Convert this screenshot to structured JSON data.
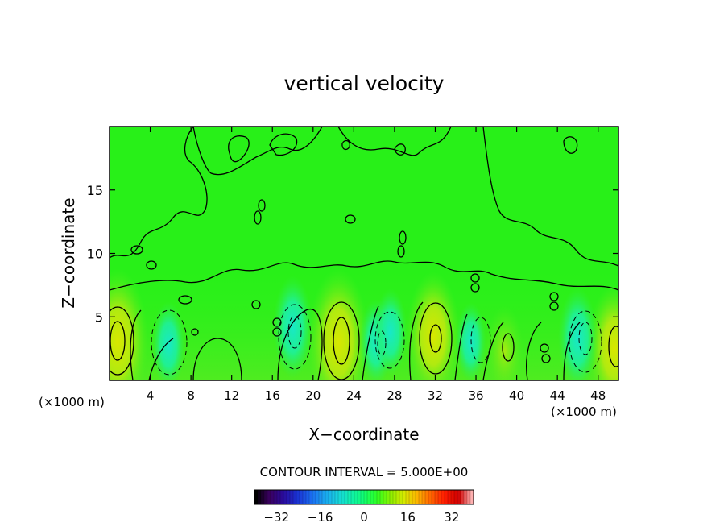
{
  "chart_data": {
    "type": "heatmap",
    "title": "vertical velocity",
    "xlabel": "X−coordinate",
    "ylabel": "Z−coordinate",
    "x_unit_left": "(×1000 m)",
    "x_unit_right": "(×1000 m)",
    "xlim": [
      0,
      50
    ],
    "ylim": [
      0,
      20
    ],
    "x_ticks": [
      4,
      8,
      12,
      16,
      20,
      24,
      28,
      32,
      36,
      40,
      44,
      48
    ],
    "y_ticks": [
      5,
      10,
      15
    ],
    "contour_interval_text": "CONTOUR INTERVAL = 5.000E+00",
    "colorbar": {
      "range": [
        -40,
        40
      ],
      "ticks": [
        -32,
        -16,
        0,
        16,
        32
      ],
      "colors": [
        "#000000",
        "#3a0060",
        "#2a0a9a",
        "#1a2fd0",
        "#1a66f0",
        "#1aa0f0",
        "#18d0e0",
        "#10f0b0",
        "#10ff70",
        "#30ff20",
        "#90f000",
        "#d8e800",
        "#ffb000",
        "#ff6000",
        "#ff1a00",
        "#d00000",
        "#ffb0b0"
      ]
    },
    "updraft_cores": [
      {
        "x": 0.8,
        "z": 3.0,
        "w": 15
      },
      {
        "x": 22.5,
        "z": 3.0,
        "w": 15
      },
      {
        "x": 31.8,
        "z": 3.5,
        "w": 12
      },
      {
        "x": 49.6,
        "z": 2.5,
        "w": 12
      },
      {
        "x": 38.8,
        "z": 2.3,
        "w": 6
      }
    ],
    "downdraft_cores": [
      {
        "x": 5.8,
        "z": 2.8,
        "w": -6
      },
      {
        "x": 18.0,
        "z": 4.2,
        "w": -8
      },
      {
        "x": 26.2,
        "z": 3.0,
        "w": -6
      },
      {
        "x": 27.6,
        "z": 3.8,
        "w": -6
      },
      {
        "x": 35.5,
        "z": 3.0,
        "w": -5
      },
      {
        "x": 46.0,
        "z": 3.3,
        "w": -8
      }
    ]
  }
}
